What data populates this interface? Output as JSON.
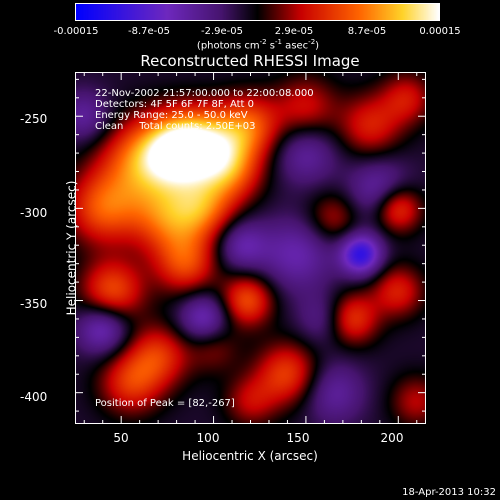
{
  "colorbar": {
    "ticks": [
      "-0.00015",
      "-8.7e-05",
      "-2.9e-05",
      "2.9e-05",
      "8.7e-05",
      "0.00015"
    ],
    "units_pre": "(photons cm",
    "units_sup1": "-2",
    "units_mid1": " s",
    "units_sup2": "-1",
    "units_mid2": " asec",
    "units_sup3": "-2",
    "units_post": ")"
  },
  "chart_data": {
    "type": "heatmap",
    "title": "Reconstructed RHESSI Image",
    "xlabel": "Heliocentric X (arcsec)",
    "ylabel": "Heliocentric Y (arcsec)",
    "xlim": [
      25,
      215
    ],
    "ylim": [
      -417,
      -226
    ],
    "x_ticks": [
      "50",
      "100",
      "150",
      "200"
    ],
    "y_ticks": [
      "-250",
      "-300",
      "-350",
      "-400"
    ],
    "x_tick_values": [
      50,
      100,
      150,
      200
    ],
    "y_tick_values": [
      -250,
      -300,
      -350,
      -400
    ],
    "value_range": [
      -0.00015,
      0.00015
    ],
    "peak": [
      82,
      -267
    ],
    "blobs": [
      {
        "x": 82,
        "y": -268,
        "v": 1.0,
        "s": 14
      },
      {
        "x": 60,
        "y": -275,
        "v": 0.6,
        "s": 16
      },
      {
        "x": 100,
        "y": -265,
        "v": 0.55,
        "s": 14
      },
      {
        "x": 40,
        "y": -300,
        "v": 0.55,
        "s": 14
      },
      {
        "x": 75,
        "y": -305,
        "v": 0.55,
        "s": 14
      },
      {
        "x": 95,
        "y": -300,
        "v": 0.5,
        "s": 12
      },
      {
        "x": 120,
        "y": -255,
        "v": 0.5,
        "s": 12
      },
      {
        "x": 110,
        "y": -280,
        "v": 0.45,
        "s": 12
      },
      {
        "x": 150,
        "y": -245,
        "v": 0.35,
        "s": 12
      },
      {
        "x": 185,
        "y": -255,
        "v": 0.4,
        "s": 12
      },
      {
        "x": 205,
        "y": -240,
        "v": 0.35,
        "s": 10
      },
      {
        "x": 200,
        "y": -300,
        "v": 0.55,
        "s": 9
      },
      {
        "x": 165,
        "y": -305,
        "v": 0.3,
        "s": 10
      },
      {
        "x": 45,
        "y": -345,
        "v": 0.55,
        "s": 12
      },
      {
        "x": 85,
        "y": -330,
        "v": 0.5,
        "s": 12
      },
      {
        "x": 118,
        "y": -350,
        "v": 0.55,
        "s": 10
      },
      {
        "x": 70,
        "y": -380,
        "v": 0.45,
        "s": 12
      },
      {
        "x": 55,
        "y": -395,
        "v": 0.45,
        "s": 12
      },
      {
        "x": 140,
        "y": -390,
        "v": 0.5,
        "s": 12
      },
      {
        "x": 175,
        "y": -360,
        "v": 0.5,
        "s": 10
      },
      {
        "x": 200,
        "y": -345,
        "v": 0.4,
        "s": 10
      },
      {
        "x": 210,
        "y": -405,
        "v": 0.3,
        "s": 10
      },
      {
        "x": 120,
        "y": -405,
        "v": 0.3,
        "s": 10
      },
      {
        "x": 100,
        "y": -375,
        "v": 0.25,
        "s": 10
      },
      {
        "x": 145,
        "y": -325,
        "v": -0.35,
        "s": 14
      },
      {
        "x": 180,
        "y": -325,
        "v": -0.7,
        "s": 8
      },
      {
        "x": 190,
        "y": -290,
        "v": -0.35,
        "s": 12
      },
      {
        "x": 40,
        "y": -365,
        "v": -0.45,
        "s": 10
      },
      {
        "x": 115,
        "y": -320,
        "v": -0.35,
        "s": 10
      },
      {
        "x": 95,
        "y": -360,
        "v": -0.45,
        "s": 10
      },
      {
        "x": 150,
        "y": -270,
        "v": -0.3,
        "s": 12
      },
      {
        "x": 165,
        "y": -400,
        "v": -0.3,
        "s": 12
      },
      {
        "x": 30,
        "y": -250,
        "v": -0.3,
        "s": 10
      },
      {
        "x": 160,
        "y": -360,
        "v": -0.25,
        "s": 10
      }
    ]
  },
  "annotations": {
    "line1": "22-Nov-2002 21:57:00.000 to 22:00:08.000",
    "line2": "Detectors: 4F 5F 6F 7F 8F, Att 0",
    "line3": "Energy Range: 25.0 - 50.0 keV",
    "line4": "Clean     Total counts: 2.50E+03",
    "peak_label": "Position of Peak = [82,-267]"
  },
  "footer": "18-Apr-2013 10:32"
}
